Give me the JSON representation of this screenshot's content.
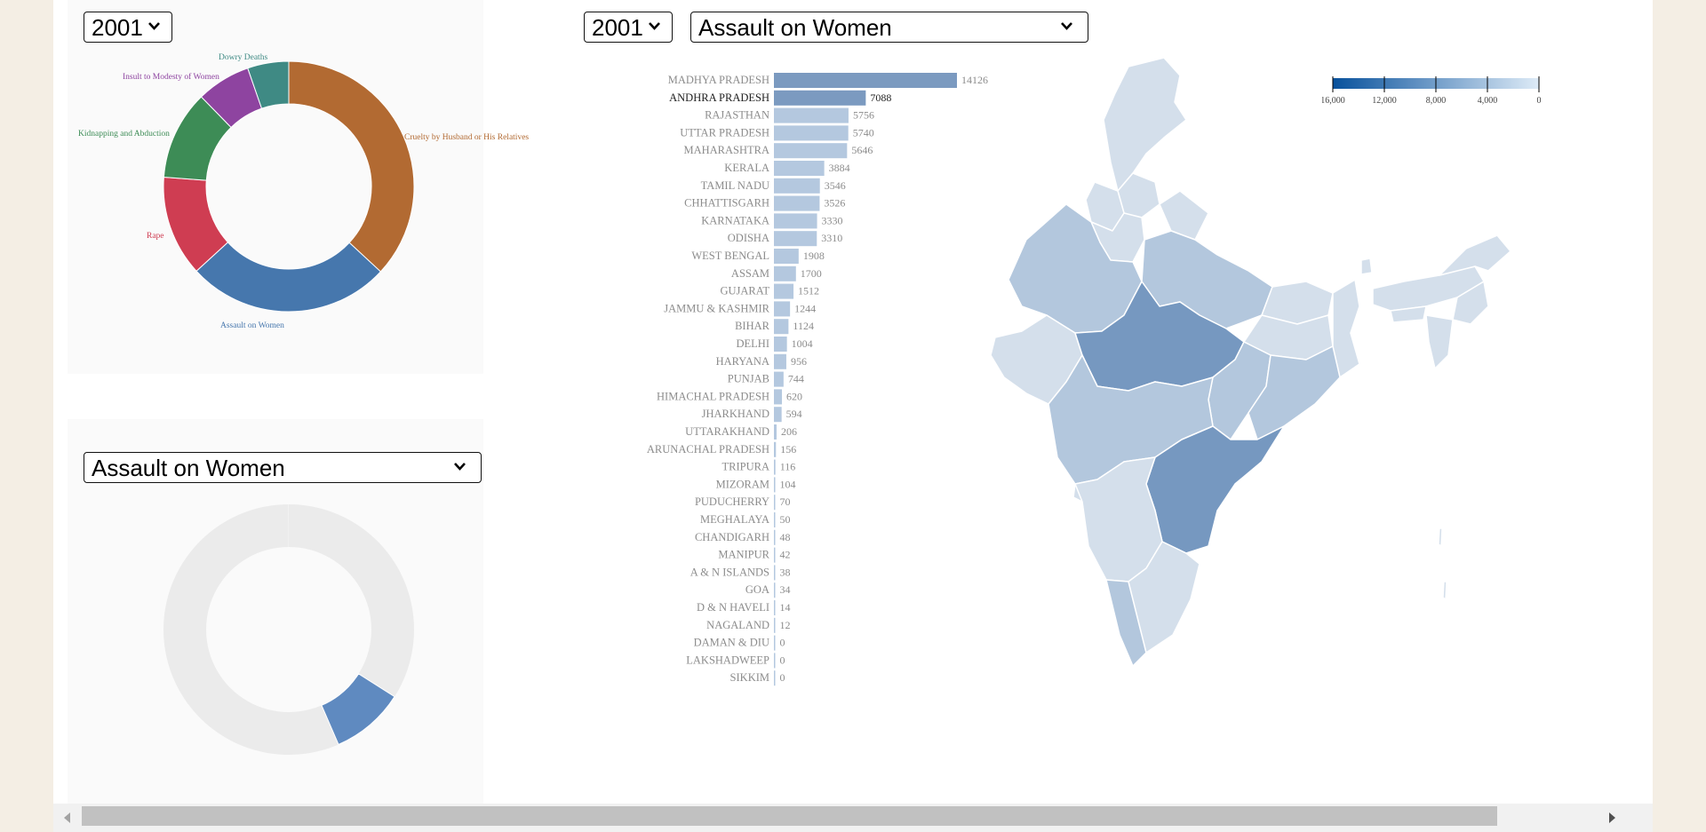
{
  "controls": {
    "year_options": [
      "2001"
    ],
    "crime_options": [
      "Assault on Women"
    ],
    "top_year": "2001",
    "bottom_crime": "Assault on Women",
    "main_year": "2001",
    "main_crime": "Assault on Women"
  },
  "icons": {
    "chevron": "chevron-down-icon",
    "scroll_up": "scroll-up-arrow-icon",
    "scroll_down": "scroll-down-arrow-icon",
    "scroll_left": "scroll-left-arrow-icon",
    "scroll_right": "scroll-right-arrow-icon"
  },
  "colors": {
    "cruelty": "#b26a32",
    "assault": "#4677ad",
    "rape": "#cf3d52",
    "kidnapping": "#3d8c56",
    "insult": "#8e44a0",
    "dowry": "#3f8a84",
    "inactive": "#ebebeb",
    "bar_light": "#b4c8df",
    "bar_mid": "#7b9ac0",
    "map_light": "#d4dfeb",
    "map_mid": "#b3c7dd",
    "map_dark": "#7698c0",
    "map_border": "#ffffff"
  },
  "chart_data": [
    {
      "type": "pie",
      "year": "2001",
      "labels": [
        "Cruelty by Husband or His Relatives",
        "Assault on Women",
        "Rape",
        "Kidnapping and Abduction",
        "Insult to Modesty of Women",
        "Dowry Deaths"
      ],
      "values": [
        37.5,
        26.7,
        13.2,
        11.7,
        7.1,
        5.4
      ]
    },
    {
      "type": "pie",
      "crime": "Assault on Women",
      "highlighted_share": 0.095,
      "highlighted_offset": 0.34
    },
    {
      "type": "bar",
      "orientation": "horizontal",
      "year": "2001",
      "crime": "Assault on Women",
      "categories": [
        "MADHYA PRADESH",
        "ANDHRA PRADESH",
        "RAJASTHAN",
        "UTTAR PRADESH",
        "MAHARASHTRA",
        "KERALA",
        "TAMIL NADU",
        "CHHATTISGARH",
        "KARNATAKA",
        "ODISHA",
        "WEST BENGAL",
        "ASSAM",
        "GUJARAT",
        "JAMMU & KASHMIR",
        "BIHAR",
        "DELHI",
        "HARYANA",
        "PUNJAB",
        "HIMACHAL PRADESH",
        "JHARKHAND",
        "UTTARAKHAND",
        "ARUNACHAL PRADESH",
        "TRIPURA",
        "MIZORAM",
        "PUDUCHERRY",
        "MEGHALAYA",
        "CHANDIGARH",
        "MANIPUR",
        "A & N ISLANDS",
        "GOA",
        "D & N HAVELI",
        "NAGALAND",
        "DAMAN & DIU",
        "LAKSHADWEEP",
        "SIKKIM"
      ],
      "values": [
        14126,
        7088,
        5756,
        5740,
        5646,
        3884,
        3546,
        3526,
        3330,
        3310,
        1908,
        1700,
        1512,
        1244,
        1124,
        1004,
        956,
        744,
        620,
        594,
        206,
        156,
        116,
        104,
        70,
        50,
        48,
        42,
        38,
        34,
        14,
        12,
        0,
        0,
        0
      ],
      "highlighted": [
        "MADHYA PRADESH",
        "ANDHRA PRADESH"
      ],
      "hovered": "ANDHRA PRADESH"
    },
    {
      "type": "heatmap",
      "kind": "choropleth-legend",
      "ticks": [
        "16,000",
        "12,000",
        "8,000",
        "4,000",
        "0"
      ],
      "range": [
        16000,
        0
      ]
    }
  ]
}
